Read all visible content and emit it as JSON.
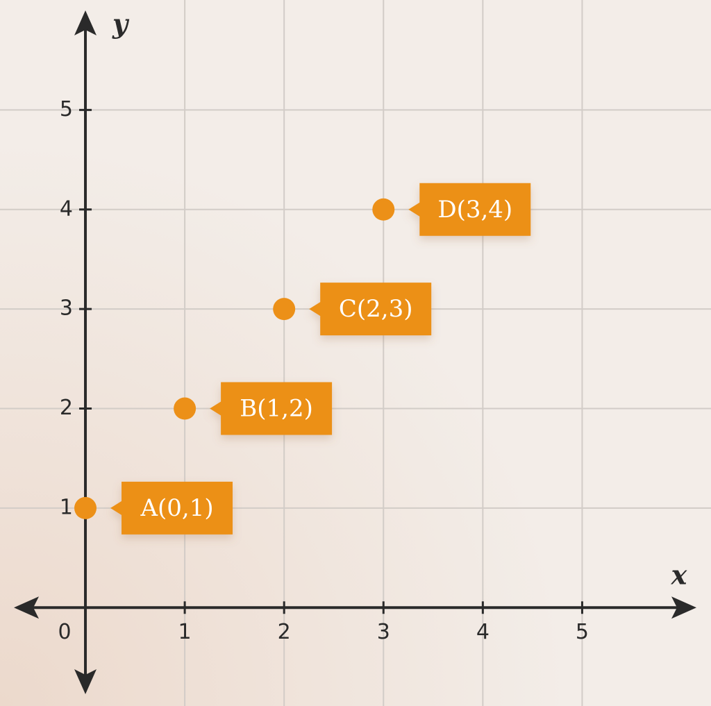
{
  "chart_data": {
    "type": "scatter",
    "x_label": "x",
    "y_label": "y",
    "labels": [
      "A(0,1)",
      "B(1,2)",
      "C(2,3)",
      "D(3,4)"
    ],
    "x": [
      0,
      1,
      2,
      3
    ],
    "series": [
      {
        "color": "#ec9018",
        "values": [
          1,
          2,
          3,
          4
        ]
      }
    ],
    "xlim": [
      -0.72,
      6.15
    ],
    "ylim": [
      -0.87,
      6.0
    ],
    "xticks": [
      0,
      1,
      2,
      3,
      4,
      5
    ],
    "yticks": [
      1,
      2,
      3,
      4,
      5
    ],
    "grid": true
  }
}
